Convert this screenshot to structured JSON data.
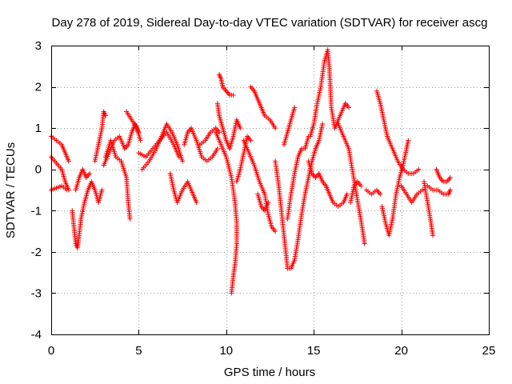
{
  "chart_data": {
    "type": "scatter",
    "title": "Day 278 of 2019, Sidereal Day-to-day VTEC variation (SDTVAR) for receiver ascg",
    "xlabel": "GPS time / hours",
    "ylabel": "SDTVAR / TECUs",
    "xlim": [
      0,
      25
    ],
    "ylim": [
      -4,
      3
    ],
    "xticks": [
      "0",
      "5",
      "10",
      "15",
      "20",
      "25"
    ],
    "yticks": [
      "-4",
      "-3",
      "-2",
      "-1",
      "0",
      "1",
      "2",
      "3"
    ],
    "grid": true,
    "marker": "+",
    "color": "#ff0000",
    "tracks": [
      [
        [
          0.0,
          0.8
        ],
        [
          0.3,
          0.7
        ],
        [
          0.6,
          0.6
        ],
        [
          0.8,
          0.4
        ],
        [
          1.0,
          0.2
        ]
      ],
      [
        [
          0.0,
          0.3
        ],
        [
          0.3,
          0.15
        ],
        [
          0.6,
          0.0
        ],
        [
          0.8,
          -0.3
        ],
        [
          1.0,
          -0.5
        ]
      ],
      [
        [
          0.0,
          -0.5
        ],
        [
          0.3,
          -0.45
        ],
        [
          0.6,
          -0.4
        ],
        [
          0.9,
          -0.5
        ]
      ],
      [
        [
          1.2,
          -1.0
        ],
        [
          1.3,
          -1.4
        ],
        [
          1.4,
          -1.8
        ],
        [
          1.5,
          -1.9
        ],
        [
          1.6,
          -1.6
        ],
        [
          1.7,
          -1.2
        ],
        [
          1.9,
          -0.8
        ],
        [
          2.1,
          -0.5
        ],
        [
          2.3,
          -0.3
        ],
        [
          2.5,
          -0.5
        ],
        [
          2.7,
          -0.8
        ],
        [
          2.9,
          -0.5
        ]
      ],
      [
        [
          1.4,
          -0.5
        ],
        [
          1.6,
          -0.2
        ],
        [
          1.8,
          0.0
        ],
        [
          2.0,
          -0.2
        ],
        [
          2.2,
          -0.1
        ]
      ],
      [
        [
          2.5,
          0.2
        ],
        [
          2.7,
          0.6
        ],
        [
          2.9,
          1.0
        ],
        [
          3.0,
          1.4
        ],
        [
          3.1,
          1.3
        ]
      ],
      [
        [
          3.0,
          0.1
        ],
        [
          3.3,
          0.4
        ],
        [
          3.6,
          0.7
        ],
        [
          3.9,
          0.8
        ],
        [
          4.2,
          0.5
        ],
        [
          4.4,
          0.6
        ],
        [
          4.6,
          0.9
        ],
        [
          4.8,
          1.1
        ],
        [
          5.0,
          0.9
        ]
      ],
      [
        [
          3.1,
          0.3
        ],
        [
          3.4,
          0.7
        ],
        [
          3.7,
          0.3
        ],
        [
          4.0,
          0.2
        ],
        [
          4.3,
          -0.2
        ],
        [
          4.4,
          -0.8
        ],
        [
          4.5,
          -1.2
        ]
      ],
      [
        [
          4.3,
          1.4
        ],
        [
          4.6,
          1.2
        ],
        [
          4.9,
          1.0
        ],
        [
          5.1,
          0.7
        ]
      ],
      [
        [
          5.0,
          0.4
        ],
        [
          5.4,
          0.3
        ],
        [
          5.8,
          0.5
        ],
        [
          6.2,
          0.7
        ],
        [
          6.6,
          0.9
        ],
        [
          7.0,
          0.6
        ],
        [
          7.3,
          0.3
        ]
      ],
      [
        [
          5.2,
          0.0
        ],
        [
          5.6,
          0.2
        ],
        [
          6.0,
          0.5
        ],
        [
          6.3,
          0.8
        ],
        [
          6.6,
          1.1
        ],
        [
          6.9,
          0.9
        ],
        [
          7.2,
          0.6
        ],
        [
          7.5,
          0.2
        ]
      ],
      [
        [
          6.8,
          -0.1
        ],
        [
          7.0,
          -0.5
        ],
        [
          7.2,
          -0.8
        ],
        [
          7.5,
          -0.5
        ],
        [
          7.8,
          -0.3
        ],
        [
          8.1,
          -0.6
        ],
        [
          8.3,
          -0.8
        ]
      ],
      [
        [
          7.6,
          0.6
        ],
        [
          7.8,
          0.9
        ],
        [
          8.0,
          1.0
        ],
        [
          8.3,
          0.7
        ],
        [
          8.6,
          0.3
        ],
        [
          8.9,
          0.2
        ],
        [
          9.2,
          0.3
        ],
        [
          9.5,
          0.5
        ]
      ],
      [
        [
          8.5,
          0.6
        ],
        [
          8.8,
          0.7
        ],
        [
          9.1,
          0.9
        ],
        [
          9.4,
          1.0
        ],
        [
          9.6,
          0.9
        ]
      ],
      [
        [
          9.6,
          2.3
        ],
        [
          9.7,
          2.2
        ],
        [
          9.8,
          2.0
        ],
        [
          10.0,
          1.9
        ],
        [
          10.2,
          1.8
        ],
        [
          10.4,
          1.8
        ]
      ],
      [
        [
          9.5,
          1.6
        ],
        [
          9.6,
          1.3
        ],
        [
          9.8,
          1.0
        ],
        [
          10.0,
          0.7
        ],
        [
          10.2,
          0.5
        ],
        [
          10.4,
          0.8
        ],
        [
          10.6,
          1.2
        ],
        [
          10.8,
          1.0
        ]
      ],
      [
        [
          9.4,
          0.9
        ],
        [
          9.7,
          0.6
        ],
        [
          10.0,
          0.3
        ],
        [
          10.3,
          -0.2
        ],
        [
          10.5,
          -0.8
        ],
        [
          10.6,
          -1.3
        ],
        [
          10.6,
          -1.8
        ],
        [
          10.5,
          -2.3
        ],
        [
          10.4,
          -2.6
        ],
        [
          10.3,
          -3.0
        ]
      ],
      [
        [
          10.6,
          -0.3
        ],
        [
          10.8,
          0.0
        ],
        [
          11.0,
          0.4
        ],
        [
          11.2,
          0.8
        ],
        [
          11.4,
          0.7
        ]
      ],
      [
        [
          11.4,
          2.0
        ],
        [
          11.6,
          1.9
        ],
        [
          11.8,
          1.7
        ],
        [
          12.0,
          1.5
        ],
        [
          12.2,
          1.3
        ],
        [
          12.5,
          1.2
        ],
        [
          12.8,
          1.0
        ]
      ],
      [
        [
          11.0,
          0.7
        ],
        [
          11.3,
          0.4
        ],
        [
          11.6,
          0.1
        ],
        [
          11.9,
          -0.3
        ],
        [
          12.2,
          -0.6
        ],
        [
          12.4,
          -1.1
        ],
        [
          12.6,
          -1.4
        ],
        [
          12.8,
          -1.5
        ]
      ],
      [
        [
          11.8,
          -0.6
        ],
        [
          12.0,
          -0.9
        ],
        [
          12.2,
          -1.0
        ],
        [
          12.4,
          -0.8
        ]
      ],
      [
        [
          12.8,
          0.2
        ],
        [
          13.0,
          -0.4
        ],
        [
          13.2,
          -1.2
        ],
        [
          13.4,
          -2.0
        ],
        [
          13.5,
          -2.4
        ],
        [
          13.7,
          -2.4
        ],
        [
          13.9,
          -2.2
        ],
        [
          14.1,
          -1.7
        ],
        [
          14.3,
          -1.1
        ],
        [
          14.5,
          -0.6
        ],
        [
          14.7,
          -0.2
        ],
        [
          14.9,
          0.2
        ],
        [
          15.1,
          0.5
        ],
        [
          15.3,
          0.7
        ],
        [
          15.5,
          1.1
        ]
      ],
      [
        [
          13.5,
          -1.2
        ],
        [
          13.7,
          -0.6
        ],
        [
          13.9,
          -0.1
        ],
        [
          14.1,
          0.3
        ],
        [
          14.3,
          0.5
        ],
        [
          14.5,
          0.5
        ],
        [
          14.7,
          0.8
        ]
      ],
      [
        [
          13.3,
          0.6
        ],
        [
          13.5,
          0.9
        ],
        [
          13.7,
          1.2
        ],
        [
          13.9,
          1.5
        ]
      ],
      [
        [
          14.8,
          0.8
        ],
        [
          15.0,
          1.1
        ],
        [
          15.2,
          1.6
        ],
        [
          15.4,
          2.0
        ],
        [
          15.6,
          2.6
        ],
        [
          15.8,
          2.9
        ],
        [
          15.9,
          2.4
        ],
        [
          16.0,
          1.5
        ],
        [
          16.2,
          1.0
        ],
        [
          16.5,
          1.3
        ],
        [
          16.8,
          1.6
        ],
        [
          17.0,
          1.5
        ]
      ],
      [
        [
          14.7,
          0.2
        ],
        [
          14.9,
          -0.1
        ],
        [
          15.1,
          -0.2
        ],
        [
          15.3,
          -0.1
        ],
        [
          15.5,
          -0.3
        ],
        [
          15.7,
          -0.4
        ],
        [
          15.9,
          -0.6
        ],
        [
          16.1,
          -0.8
        ],
        [
          16.4,
          -0.9
        ],
        [
          16.7,
          -0.8
        ],
        [
          16.9,
          -0.6
        ]
      ],
      [
        [
          16.4,
          1.1
        ],
        [
          16.7,
          0.8
        ],
        [
          17.0,
          0.5
        ],
        [
          17.2,
          0.0
        ],
        [
          17.4,
          -0.5
        ],
        [
          17.6,
          -1.0
        ],
        [
          17.8,
          -1.5
        ],
        [
          17.9,
          -1.8
        ]
      ],
      [
        [
          17.1,
          -0.8
        ],
        [
          17.3,
          -0.4
        ],
        [
          17.5,
          -0.3
        ],
        [
          17.7,
          -0.4
        ]
      ],
      [
        [
          18.0,
          -0.5
        ],
        [
          18.3,
          -0.6
        ],
        [
          18.6,
          -0.5
        ],
        [
          18.8,
          -0.6
        ]
      ],
      [
        [
          18.6,
          1.9
        ],
        [
          18.8,
          1.6
        ],
        [
          19.0,
          1.2
        ],
        [
          19.2,
          0.8
        ],
        [
          19.5,
          0.5
        ],
        [
          19.8,
          0.2
        ],
        [
          20.1,
          0.0
        ],
        [
          20.4,
          -0.1
        ],
        [
          20.7,
          -0.1
        ],
        [
          21.0,
          0.0
        ]
      ],
      [
        [
          18.9,
          -0.9
        ],
        [
          19.1,
          -1.3
        ],
        [
          19.3,
          -1.6
        ],
        [
          19.5,
          -1.2
        ],
        [
          19.7,
          -0.6
        ],
        [
          19.9,
          -0.2
        ],
        [
          20.1,
          0.1
        ],
        [
          20.3,
          0.5
        ],
        [
          20.4,
          0.7
        ]
      ],
      [
        [
          20.0,
          -0.4
        ],
        [
          20.3,
          -0.6
        ],
        [
          20.6,
          -0.8
        ],
        [
          20.9,
          -0.6
        ],
        [
          21.2,
          -0.5
        ]
      ],
      [
        [
          21.3,
          -0.3
        ],
        [
          21.5,
          -0.8
        ],
        [
          21.7,
          -1.3
        ],
        [
          21.8,
          -1.6
        ]
      ],
      [
        [
          21.5,
          -0.4
        ],
        [
          21.8,
          -0.5
        ],
        [
          22.1,
          -0.5
        ],
        [
          22.4,
          -0.6
        ],
        [
          22.7,
          -0.6
        ],
        [
          22.8,
          -0.5
        ]
      ],
      [
        [
          22.0,
          0.0
        ],
        [
          22.2,
          -0.2
        ],
        [
          22.4,
          -0.3
        ],
        [
          22.6,
          -0.3
        ],
        [
          22.8,
          -0.2
        ]
      ]
    ]
  }
}
